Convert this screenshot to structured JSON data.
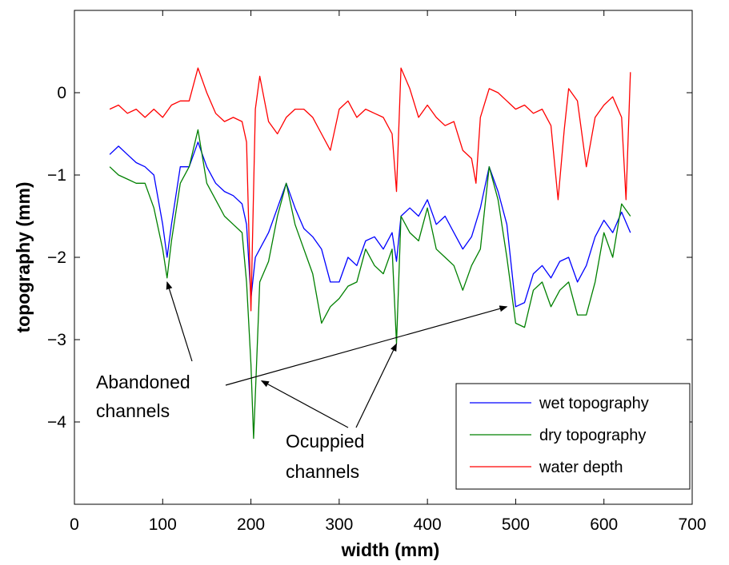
{
  "chart_data": {
    "type": "line",
    "title": "",
    "xlabel": "width (mm)",
    "ylabel": "topography (mm)",
    "xlim": [
      0,
      700
    ],
    "ylim": [
      -5,
      1
    ],
    "xticks": [
      0,
      100,
      200,
      300,
      400,
      500,
      600,
      700
    ],
    "xtick_labels": [
      "0",
      "100",
      "200",
      "300",
      "400",
      "500",
      "600",
      "700"
    ],
    "yticks": [
      0,
      -1,
      -2,
      -3,
      -4
    ],
    "ytick_labels": [
      "0",
      "−1",
      "−2",
      "−3",
      "−4"
    ],
    "grid": false,
    "legend_position": "bottom-right",
    "series": [
      {
        "name": "wet topography",
        "color": "#0000ff",
        "x": [
          40,
          50,
          60,
          70,
          80,
          90,
          100,
          105,
          110,
          120,
          130,
          140,
          150,
          160,
          170,
          180,
          190,
          195,
          200,
          205,
          210,
          220,
          230,
          240,
          250,
          260,
          270,
          280,
          290,
          300,
          310,
          320,
          330,
          340,
          350,
          360,
          365,
          370,
          380,
          390,
          400,
          410,
          420,
          430,
          440,
          450,
          460,
          470,
          480,
          490,
          500,
          510,
          520,
          530,
          540,
          550,
          560,
          570,
          580,
          590,
          600,
          610,
          620,
          630
        ],
        "y": [
          -0.75,
          -0.65,
          -0.75,
          -0.85,
          -0.9,
          -1.0,
          -1.6,
          -2.0,
          -1.6,
          -0.9,
          -0.9,
          -0.6,
          -0.9,
          -1.1,
          -1.2,
          -1.25,
          -1.35,
          -1.6,
          -2.5,
          -2.0,
          -1.9,
          -1.7,
          -1.4,
          -1.1,
          -1.4,
          -1.65,
          -1.75,
          -1.9,
          -2.3,
          -2.3,
          -2.0,
          -2.1,
          -1.8,
          -1.75,
          -1.9,
          -1.7,
          -2.05,
          -1.5,
          -1.4,
          -1.5,
          -1.3,
          -1.6,
          -1.5,
          -1.7,
          -1.9,
          -1.75,
          -1.4,
          -0.9,
          -1.2,
          -1.6,
          -2.6,
          -2.55,
          -2.2,
          -2.1,
          -2.25,
          -2.05,
          -2.0,
          -2.3,
          -2.1,
          -1.75,
          -1.55,
          -1.7,
          -1.45,
          -1.7
        ]
      },
      {
        "name": "dry topography",
        "color": "#008000",
        "x": [
          40,
          50,
          60,
          70,
          80,
          90,
          100,
          105,
          110,
          120,
          130,
          140,
          150,
          160,
          170,
          180,
          190,
          195,
          200,
          203,
          206,
          210,
          220,
          230,
          240,
          250,
          260,
          270,
          280,
          290,
          300,
          310,
          320,
          330,
          340,
          350,
          360,
          365,
          370,
          380,
          390,
          400,
          410,
          420,
          430,
          440,
          450,
          460,
          470,
          480,
          490,
          500,
          510,
          520,
          530,
          540,
          550,
          560,
          570,
          580,
          590,
          600,
          610,
          620,
          630
        ],
        "y": [
          -0.9,
          -1.0,
          -1.05,
          -1.1,
          -1.1,
          -1.4,
          -1.9,
          -2.25,
          -1.8,
          -1.1,
          -0.9,
          -0.45,
          -1.1,
          -1.3,
          -1.5,
          -1.6,
          -1.7,
          -2.3,
          -3.3,
          -4.2,
          -3.4,
          -2.3,
          -2.05,
          -1.5,
          -1.1,
          -1.6,
          -1.9,
          -2.2,
          -2.8,
          -2.6,
          -2.5,
          -2.35,
          -2.3,
          -1.9,
          -2.1,
          -2.2,
          -1.9,
          -3.05,
          -1.5,
          -1.7,
          -1.8,
          -1.4,
          -1.9,
          -2.0,
          -2.1,
          -2.4,
          -2.1,
          -1.9,
          -0.9,
          -1.3,
          -2.0,
          -2.8,
          -2.85,
          -2.4,
          -2.3,
          -2.6,
          -2.4,
          -2.3,
          -2.7,
          -2.7,
          -2.3,
          -1.7,
          -2.0,
          -1.35,
          -1.5
        ]
      },
      {
        "name": "water depth",
        "color": "#ff0000",
        "x": [
          40,
          50,
          60,
          70,
          80,
          90,
          100,
          110,
          120,
          130,
          140,
          150,
          160,
          170,
          180,
          190,
          195,
          200,
          205,
          210,
          220,
          230,
          240,
          250,
          260,
          270,
          280,
          290,
          300,
          310,
          320,
          330,
          340,
          350,
          360,
          365,
          370,
          380,
          390,
          400,
          410,
          420,
          430,
          440,
          450,
          455,
          460,
          470,
          480,
          490,
          500,
          510,
          520,
          530,
          540,
          548,
          555,
          560,
          570,
          580,
          590,
          600,
          610,
          620,
          625,
          630
        ],
        "y": [
          -0.2,
          -0.15,
          -0.25,
          -0.2,
          -0.3,
          -0.2,
          -0.3,
          -0.15,
          -0.1,
          -0.1,
          0.3,
          0.0,
          -0.25,
          -0.35,
          -0.3,
          -0.35,
          -0.6,
          -2.65,
          -0.2,
          0.2,
          -0.35,
          -0.5,
          -0.3,
          -0.2,
          -0.2,
          -0.3,
          -0.5,
          -0.7,
          -0.2,
          -0.1,
          -0.3,
          -0.2,
          -0.25,
          -0.3,
          -0.5,
          -1.2,
          0.3,
          0.05,
          -0.3,
          -0.15,
          -0.3,
          -0.4,
          -0.35,
          -0.7,
          -0.8,
          -1.1,
          -0.3,
          0.05,
          0.0,
          -0.1,
          -0.2,
          -0.15,
          -0.25,
          -0.2,
          -0.4,
          -1.3,
          -0.45,
          0.05,
          -0.1,
          -0.9,
          -0.3,
          -0.15,
          -0.05,
          -0.3,
          -1.3,
          0.25
        ]
      }
    ],
    "annotations": [
      {
        "text_lines": [
          "Abandoned",
          "channels"
        ],
        "arrows_to": [
          [
            105,
            -2.3
          ],
          [
            490,
            -2.6
          ]
        ]
      },
      {
        "text_lines": [
          "Ocuppied",
          "channels"
        ],
        "arrows_to": [
          [
            212,
            -3.5
          ],
          [
            365,
            -3.05
          ]
        ]
      }
    ]
  }
}
